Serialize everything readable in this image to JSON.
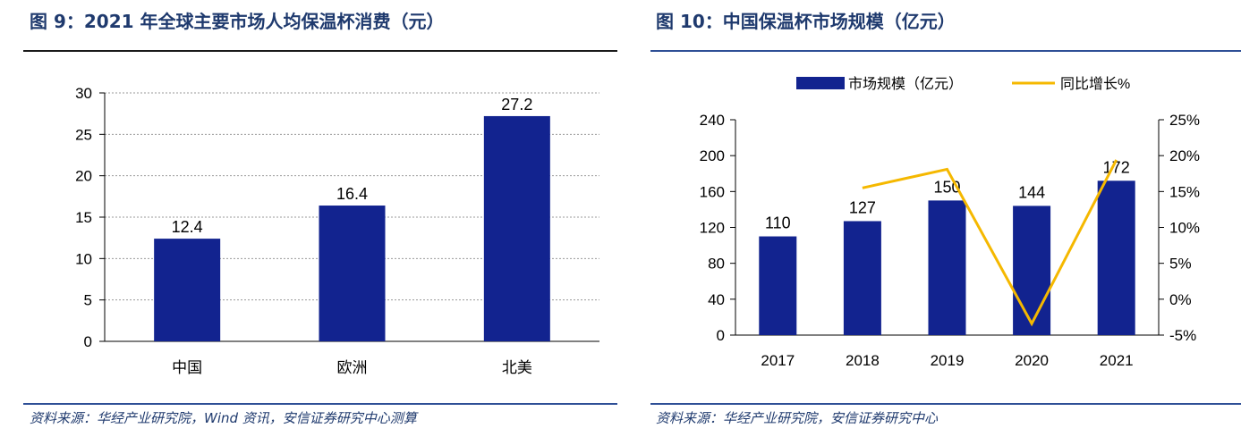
{
  "figure9": {
    "title": "图 9：2021 年全球主要市场人均保温杯消费（元）",
    "source": "资料来源：华经产业研究院，Wind 资讯，安信证券研究中心测算",
    "colors": {
      "bar": "#12238f",
      "grid": "#9a9a9a"
    },
    "chart_data": {
      "type": "bar",
      "categories": [
        "中国",
        "欧洲",
        "北美"
      ],
      "values": [
        12.4,
        16.4,
        27.2
      ],
      "data_labels": [
        "12.4",
        "16.4",
        "27.2"
      ],
      "ylim": [
        0,
        30
      ],
      "yticks": [
        "0",
        "5",
        "10",
        "15",
        "20",
        "25",
        "30"
      ],
      "grid": true,
      "title": "",
      "xlabel": "",
      "ylabel": ""
    }
  },
  "figure10": {
    "title": "图 10：中国保温杯市场规模（亿元）",
    "source": "资料来源：华经产业研究院，安信证券研究中心",
    "colors": {
      "bar": "#12238f",
      "line": "#f5b800"
    },
    "chart_data": {
      "type": "bar",
      "categories": [
        "2017",
        "2018",
        "2019",
        "2020",
        "2021"
      ],
      "series": [
        {
          "name": "市场规模（亿元）",
          "type": "bar",
          "axis": "left",
          "values": [
            110,
            127,
            150,
            144,
            172
          ],
          "data_labels": [
            "110",
            "127",
            "150",
            "144",
            "172"
          ]
        },
        {
          "name": "同比增长%",
          "type": "line",
          "axis": "right",
          "values": [
            null,
            15.5,
            18.1,
            -3.4,
            19.4
          ]
        }
      ],
      "ylim": [
        0,
        240
      ],
      "yticks": [
        "0",
        "40",
        "80",
        "120",
        "160",
        "200",
        "240"
      ],
      "y2lim": [
        -5,
        25
      ],
      "y2ticks": [
        "-5%",
        "0%",
        "5%",
        "10%",
        "15%",
        "20%",
        "25%"
      ],
      "legend": "top-center",
      "grid": false,
      "title": "",
      "xlabel": "",
      "ylabel": ""
    }
  }
}
